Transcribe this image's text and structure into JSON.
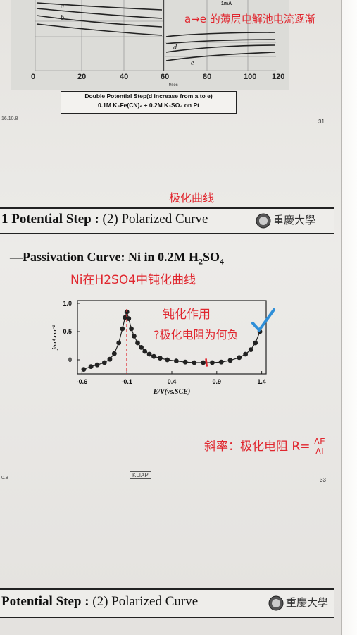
{
  "top_slide": {
    "caption_line1": "Double Potential Step(d increase from a to e)",
    "caption_line2": "0.1M K₄Fe(CN)₆ + 0.2M K₂SO₄ on Pt",
    "x_ticks": [
      "0",
      "20",
      "40",
      "60",
      "80",
      "100",
      "120"
    ],
    "x_label": "t/sec",
    "current_label": "1mA",
    "annotation": "a→e 的薄层电解池电流逐渐",
    "footer_left": "16.10.8",
    "page_number": "31"
  },
  "middle_note": "极化曲线",
  "slide": {
    "header_title_prefix": "1 Potential Step :",
    "header_title_rest": "(2) Polarized Curve",
    "subtitle_main": "—Passivation Curve: Ni in 0.2M H",
    "subtitle_sub1": "2",
    "subtitle_mid": "SO",
    "subtitle_sub2": "4",
    "note_title": "Ni在H2SO4中钝化曲线",
    "note_passivation": "钝化作用",
    "note_question": "?极化电阻为何负",
    "note_slope_prefix": "斜率：极化电阻 R=",
    "note_slope_num": "ΔE",
    "note_slope_den": "ΔI",
    "footer_left": "0.8",
    "footer_center": "KLIAP",
    "page_number": "33"
  },
  "chart_data": {
    "type": "scatter",
    "xlabel": "E/V(vs.SCE)",
    "ylabel": "j/mA.cm⁻²",
    "x_ticks": [
      "-0.6",
      "-0.1",
      "0.4",
      "0.9",
      "1.4"
    ],
    "y_ticks": [
      "0",
      "0.5",
      "1.0"
    ],
    "xlim": [
      -0.65,
      1.45
    ],
    "ylim": [
      -0.25,
      1.05
    ],
    "x": [
      -0.58,
      -0.5,
      -0.43,
      -0.35,
      -0.29,
      -0.24,
      -0.19,
      -0.15,
      -0.12,
      -0.1,
      -0.08,
      -0.05,
      -0.02,
      0.02,
      0.06,
      0.1,
      0.15,
      0.2,
      0.27,
      0.35,
      0.45,
      0.55,
      0.65,
      0.75,
      0.85,
      0.95,
      1.05,
      1.15,
      1.22,
      1.28,
      1.33,
      1.38
    ],
    "y": [
      -0.17,
      -0.12,
      -0.09,
      -0.05,
      0.01,
      0.11,
      0.3,
      0.55,
      0.75,
      0.85,
      0.73,
      0.55,
      0.42,
      0.3,
      0.22,
      0.15,
      0.1,
      0.06,
      0.03,
      0.0,
      -0.02,
      -0.04,
      -0.05,
      -0.05,
      -0.05,
      -0.04,
      -0.01,
      0.04,
      0.1,
      0.18,
      0.3,
      0.5
    ]
  },
  "bottom_slide": {
    "header_title_prefix": "Potential Step :",
    "header_title_rest": "(2) Polarized Curve"
  },
  "colors": {
    "ink": "#e0262e",
    "check": "#2f8fd8",
    "marker": "#222222"
  }
}
